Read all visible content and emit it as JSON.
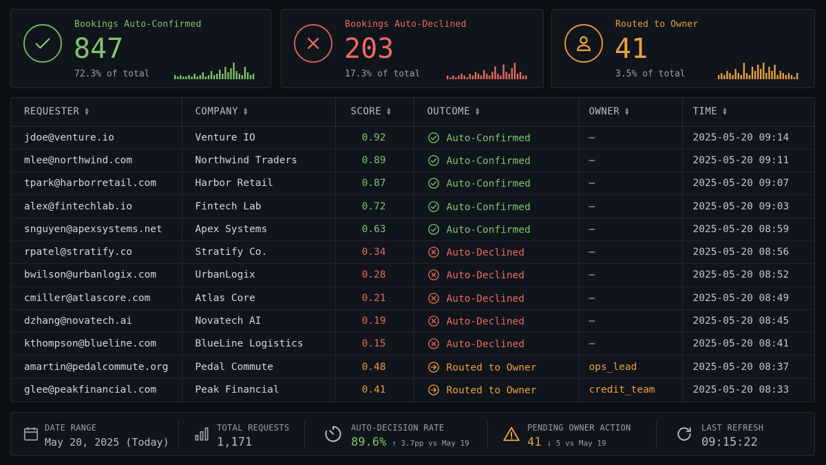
{
  "cards": [
    {
      "title": "Bookings Auto-Confirmed",
      "value": "847",
      "subtitle": "72.3% of total",
      "color": "#7fc46f",
      "icon": "check-icon",
      "spark": [
        3,
        2,
        3,
        2,
        2,
        3,
        2,
        4,
        2,
        3,
        5,
        2,
        3,
        6,
        3,
        4,
        7,
        4,
        9,
        5,
        8,
        12,
        6,
        4,
        3,
        9,
        5,
        3,
        4
      ]
    },
    {
      "title": "Bookings Auto-Declined",
      "value": "203",
      "subtitle": "17.3% of total",
      "color": "#ec6a5e",
      "icon": "x-icon",
      "spark": [
        2,
        1,
        2,
        1,
        2,
        3,
        2,
        1,
        3,
        2,
        4,
        3,
        2,
        5,
        3,
        2,
        4,
        7,
        3,
        2,
        8,
        4,
        3,
        6,
        9,
        3,
        4,
        2,
        2
      ]
    },
    {
      "title": "Routed to Owner",
      "value": "41",
      "subtitle": "3.5% of total",
      "color": "#eaa13e",
      "icon": "user-icon",
      "spark": [
        2,
        3,
        2,
        4,
        3,
        2,
        5,
        3,
        2,
        8,
        3,
        2,
        6,
        4,
        7,
        5,
        8,
        3,
        6,
        4,
        7,
        2,
        4,
        3,
        2,
        3,
        2,
        1,
        3
      ]
    }
  ],
  "table": {
    "columns": [
      "REQUESTER",
      "COMPANY",
      "SCORE",
      "OUTCOME",
      "OWNER",
      "TIME"
    ],
    "rows": [
      {
        "requester": "jdoe@venture.io",
        "company": "Venture IO",
        "score": "0.92",
        "outcome": "Auto-Confirmed",
        "kind": "confirmed",
        "owner": "—",
        "time": "2025-05-20 09:14"
      },
      {
        "requester": "mlee@northwind.com",
        "company": "Northwind Traders",
        "score": "0.89",
        "outcome": "Auto-Confirmed",
        "kind": "confirmed",
        "owner": "—",
        "time": "2025-05-20 09:11"
      },
      {
        "requester": "tpark@harborretail.com",
        "company": "Harbor Retail",
        "score": "0.87",
        "outcome": "Auto-Confirmed",
        "kind": "confirmed",
        "owner": "—",
        "time": "2025-05-20 09:07"
      },
      {
        "requester": "alex@fintechlab.io",
        "company": "Fintech Lab",
        "score": "0.72",
        "outcome": "Auto-Confirmed",
        "kind": "confirmed",
        "owner": "—",
        "time": "2025-05-20 09:03"
      },
      {
        "requester": "snguyen@apexsystems.net",
        "company": "Apex Systems",
        "score": "0.63",
        "outcome": "Auto-Confirmed",
        "kind": "confirmed",
        "owner": "—",
        "time": "2025-05-20 08:59"
      },
      {
        "requester": "rpatel@stratify.co",
        "company": "Stratify Co.",
        "score": "0.34",
        "outcome": "Auto-Declined",
        "kind": "declined",
        "owner": "—",
        "time": "2025-05-20 08:56"
      },
      {
        "requester": "bwilson@urbanlogix.com",
        "company": "UrbanLogix",
        "score": "0.28",
        "outcome": "Auto-Declined",
        "kind": "declined",
        "owner": "—",
        "time": "2025-05-20 08:52"
      },
      {
        "requester": "cmiller@atlascore.com",
        "company": "Atlas Core",
        "score": "0.21",
        "outcome": "Auto-Declined",
        "kind": "declined",
        "owner": "—",
        "time": "2025-05-20 08:49"
      },
      {
        "requester": "dzhang@novatech.ai",
        "company": "Novatech AI",
        "score": "0.19",
        "outcome": "Auto-Declined",
        "kind": "declined",
        "owner": "—",
        "time": "2025-05-20 08:45"
      },
      {
        "requester": "kthompson@blueline.com",
        "company": "BlueLine Logistics",
        "score": "0.15",
        "outcome": "Auto-Declined",
        "kind": "declined",
        "owner": "—",
        "time": "2025-05-20 08:41"
      },
      {
        "requester": "amartin@pedalcommute.org",
        "company": "Pedal Commute",
        "score": "0.48",
        "outcome": "Routed to Owner",
        "kind": "routed",
        "owner": "ops_lead",
        "time": "2025-05-20 08:37"
      },
      {
        "requester": "glee@peakfinancial.com",
        "company": "Peak Financial",
        "score": "0.41",
        "outcome": "Routed to Owner",
        "kind": "routed",
        "owner": "credit_team",
        "time": "2025-05-20 08:33"
      }
    ]
  },
  "footer": {
    "date_range": {
      "label": "DATE RANGE",
      "value": "May 20, 2025 (Today)"
    },
    "total_requests": {
      "label": "TOTAL REQUESTS",
      "value": "1,171"
    },
    "auto_decision_rate": {
      "label": "AUTO-DECISION RATE",
      "value": "89.6%",
      "delta": "↑ 3.7pp vs May 19"
    },
    "pending_owner_action": {
      "label": "PENDING OWNER ACTION",
      "value": "41",
      "delta": "↓ 5 vs May 19"
    },
    "last_refresh": {
      "label": "LAST REFRESH",
      "value": "09:15:22"
    }
  },
  "colors": {
    "confirmed": "#7fc46f",
    "declined": "#ec6a5e",
    "routed": "#eaa13e",
    "background": "#0b0e13",
    "panel": "#10141b"
  }
}
